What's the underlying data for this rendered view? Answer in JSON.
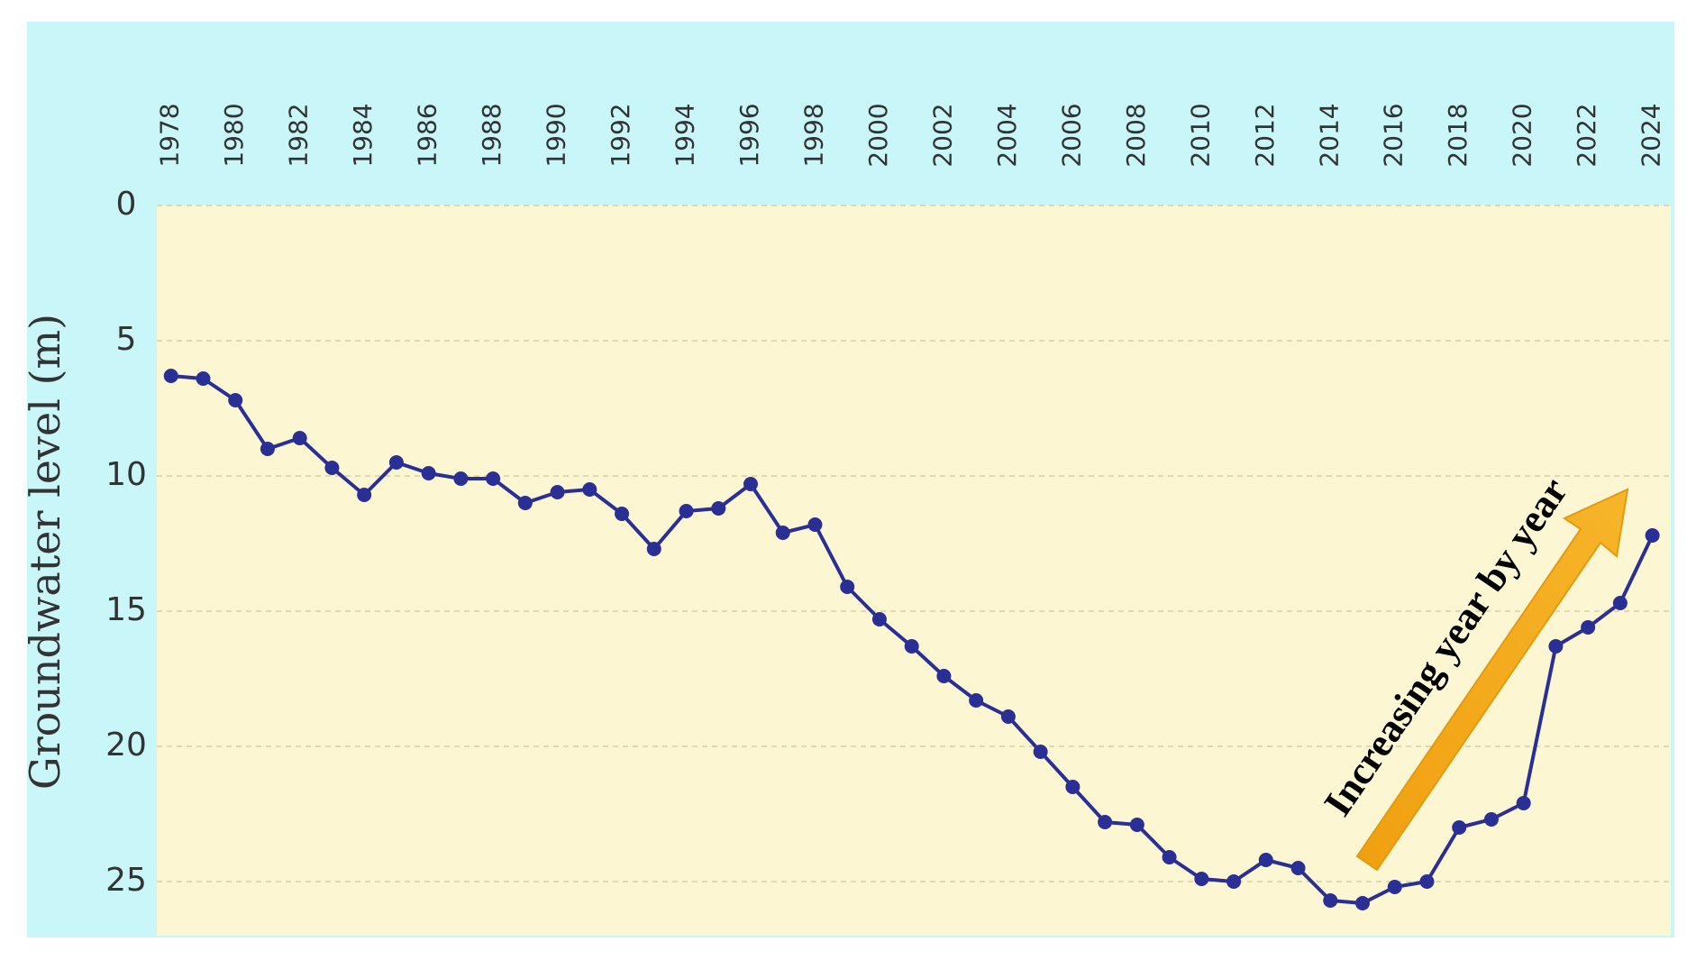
{
  "chart_data": {
    "type": "line",
    "y_label": "Groundwater level (m)",
    "annotation": "Increasing year by year",
    "x": [
      1978,
      1979,
      1980,
      1981,
      1982,
      1983,
      1984,
      1985,
      1986,
      1987,
      1988,
      1989,
      1990,
      1991,
      1992,
      1993,
      1994,
      1995,
      1996,
      1997,
      1998,
      1999,
      2000,
      2001,
      2002,
      2003,
      2004,
      2005,
      2006,
      2007,
      2008,
      2009,
      2010,
      2011,
      2012,
      2013,
      2014,
      2015,
      2016,
      2017,
      2018,
      2019,
      2020,
      2021,
      2022,
      2023,
      2024
    ],
    "series": [
      {
        "color": "#2a2f96",
        "values": [
          6.3,
          6.4,
          7.2,
          9.0,
          8.6,
          9.7,
          10.7,
          9.5,
          9.9,
          10.1,
          10.1,
          11.0,
          10.6,
          10.5,
          11.4,
          12.7,
          11.3,
          11.2,
          10.3,
          12.1,
          11.8,
          14.1,
          15.3,
          16.3,
          17.4,
          18.3,
          18.9,
          20.2,
          21.5,
          22.8,
          22.9,
          24.1,
          24.9,
          25.0,
          24.2,
          24.5,
          25.7,
          25.8,
          25.2,
          25.0,
          23.0,
          22.7,
          22.1,
          16.3,
          15.6,
          14.7,
          12.2
        ]
      }
    ],
    "xlim": [
      1977.56,
      2024.57
    ],
    "xticks": [
      1978,
      1980,
      1982,
      1984,
      1986,
      1988,
      1990,
      1992,
      1994,
      1996,
      1998,
      2000,
      2002,
      2004,
      2006,
      2008,
      2010,
      2012,
      2014,
      2016,
      2018,
      2020,
      2022,
      2024
    ],
    "ylim": [
      0,
      27
    ],
    "y_inverted": true,
    "yticks": [
      0,
      5,
      10,
      15,
      20,
      25
    ],
    "grid": true
  }
}
